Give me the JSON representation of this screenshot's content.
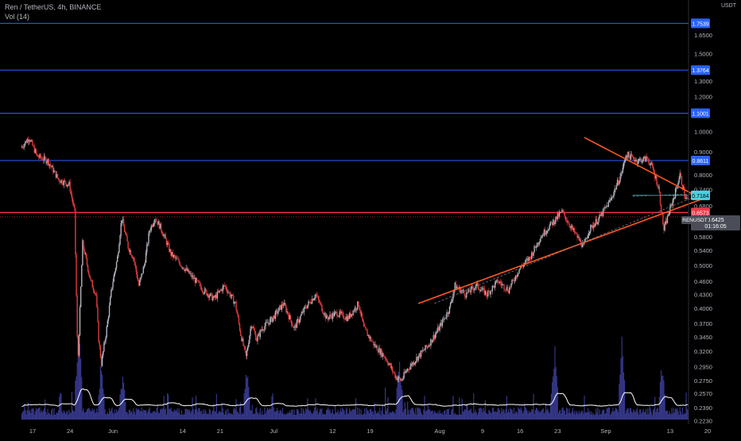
{
  "header": {
    "symbol_line": "Ren / TetherUS, 4h, BINANCE",
    "volume_line": "Vol (14)"
  },
  "colors": {
    "background": "#000000",
    "up": "#b2b5be",
    "down": "#e03b3b",
    "hline": "#2962ff",
    "trendline": "#ff5722",
    "dashed": "#787b86",
    "volume": "#3d3f9e",
    "volume_ma": "#ffffff",
    "price_line": "#f23645",
    "axis_text": "#b2b5be"
  },
  "chart_data": {
    "type": "candlestick",
    "symbol": "RENUSDT",
    "interval": "4h",
    "exchange": "BINANCE",
    "y_axis": {
      "unit": "USDT",
      "scale": "log",
      "range": [
        0.219,
        1.98
      ],
      "ticks": [
        "1.6500",
        "1.5000",
        "1.3000",
        "1.2000",
        "1.0000",
        "0.9000",
        "0.8000",
        "0.7400",
        "0.6800",
        "0.5800",
        "0.5400",
        "0.5000",
        "0.4600",
        "0.4300",
        "0.4000",
        "0.3700",
        "0.3450",
        "0.3200",
        "0.2950",
        "0.2750",
        "0.2570",
        "0.2390",
        "0.2230"
      ]
    },
    "x_axis": {
      "range_days": [
        0,
        165
      ],
      "ticks": [
        {
          "label": "17",
          "day": 0
        },
        {
          "label": "24",
          "day": 7
        },
        {
          "label": "Jun",
          "day": 15
        },
        {
          "label": "14",
          "day": 28
        },
        {
          "label": "21",
          "day": 35
        },
        {
          "label": "Jul",
          "day": 45
        },
        {
          "label": "12",
          "day": 56
        },
        {
          "label": "19",
          "day": 63
        },
        {
          "label": "Aug",
          "day": 76
        },
        {
          "label": "9",
          "day": 84
        },
        {
          "label": "16",
          "day": 91
        },
        {
          "label": "23",
          "day": 98
        },
        {
          "label": "Sep",
          "day": 107
        },
        {
          "label": "13",
          "day": 119
        },
        {
          "label": "20",
          "day": 126
        }
      ]
    },
    "horizontal_levels": [
      {
        "value": 1.7539,
        "label": "1.7539"
      },
      {
        "value": 1.3764,
        "label": "1.3764"
      },
      {
        "value": 1.1001,
        "label": "1.1001"
      },
      {
        "value": 0.8611,
        "label": "0.8611"
      },
      {
        "value": 0.6573,
        "label": "0.6573"
      }
    ],
    "cyan_level": {
      "value": 0.7184,
      "label": "0.7184",
      "from_day": 112
    },
    "current_price": {
      "value": 0.6425,
      "label": "0.6425",
      "symbol": "RENUSDT",
      "countdown": "01:16:05"
    },
    "trendlines": [
      {
        "from": {
          "day": 72,
          "price": 0.41
        },
        "to": {
          "day": 125,
          "price": 0.705
        }
      },
      {
        "from": {
          "day": 103,
          "price": 0.97
        },
        "to": {
          "day": 125,
          "price": 0.705
        }
      }
    ],
    "dashed_trendlines": [
      {
        "from": {
          "day": 75,
          "price": 0.41
        },
        "to": {
          "day": 125,
          "price": 0.725
        }
      },
      {
        "from": {
          "day": 112,
          "price": 0.715
        },
        "to": {
          "day": 125,
          "price": 0.725
        }
      }
    ],
    "price_path": [
      {
        "day": -2,
        "price": 0.92
      },
      {
        "day": -0.5,
        "price": 0.97
      },
      {
        "day": 1,
        "price": 0.88
      },
      {
        "day": 3,
        "price": 0.86
      },
      {
        "day": 5,
        "price": 0.78
      },
      {
        "day": 7,
        "price": 0.76
      },
      {
        "day": 8,
        "price": 0.66
      },
      {
        "day": 8.6,
        "price": 0.3
      },
      {
        "day": 9.5,
        "price": 0.56
      },
      {
        "day": 11,
        "price": 0.46
      },
      {
        "day": 12,
        "price": 0.43
      },
      {
        "day": 12.5,
        "price": 0.34
      },
      {
        "day": 13,
        "price": 0.3
      },
      {
        "day": 14,
        "price": 0.36
      },
      {
        "day": 15,
        "price": 0.45
      },
      {
        "day": 16,
        "price": 0.52
      },
      {
        "day": 16.8,
        "price": 0.64
      },
      {
        "day": 18,
        "price": 0.55
      },
      {
        "day": 19,
        "price": 0.52
      },
      {
        "day": 20,
        "price": 0.45
      },
      {
        "day": 21,
        "price": 0.5
      },
      {
        "day": 22,
        "price": 0.6
      },
      {
        "day": 23,
        "price": 0.64
      },
      {
        "day": 24,
        "price": 0.61
      },
      {
        "day": 25,
        "price": 0.57
      },
      {
        "day": 26,
        "price": 0.53
      },
      {
        "day": 28,
        "price": 0.5
      },
      {
        "day": 30,
        "price": 0.47
      },
      {
        "day": 32,
        "price": 0.44
      },
      {
        "day": 34,
        "price": 0.42
      },
      {
        "day": 36,
        "price": 0.45
      },
      {
        "day": 38,
        "price": 0.41
      },
      {
        "day": 39,
        "price": 0.35
      },
      {
        "day": 40,
        "price": 0.31
      },
      {
        "day": 41,
        "price": 0.37
      },
      {
        "day": 42,
        "price": 0.34
      },
      {
        "day": 43,
        "price": 0.36
      },
      {
        "day": 45,
        "price": 0.38
      },
      {
        "day": 47,
        "price": 0.41
      },
      {
        "day": 49,
        "price": 0.36
      },
      {
        "day": 51,
        "price": 0.4
      },
      {
        "day": 53,
        "price": 0.43
      },
      {
        "day": 55,
        "price": 0.38
      },
      {
        "day": 57,
        "price": 0.39
      },
      {
        "day": 59,
        "price": 0.38
      },
      {
        "day": 61,
        "price": 0.41
      },
      {
        "day": 62,
        "price": 0.36
      },
      {
        "day": 64,
        "price": 0.33
      },
      {
        "day": 66,
        "price": 0.31
      },
      {
        "day": 68,
        "price": 0.28
      },
      {
        "day": 69,
        "price": 0.275
      },
      {
        "day": 70,
        "price": 0.29
      },
      {
        "day": 72,
        "price": 0.31
      },
      {
        "day": 74,
        "price": 0.33
      },
      {
        "day": 76,
        "price": 0.36
      },
      {
        "day": 78,
        "price": 0.4
      },
      {
        "day": 79,
        "price": 0.45
      },
      {
        "day": 81,
        "price": 0.43
      },
      {
        "day": 83,
        "price": 0.45
      },
      {
        "day": 85,
        "price": 0.43
      },
      {
        "day": 87,
        "price": 0.46
      },
      {
        "day": 89,
        "price": 0.44
      },
      {
        "day": 91,
        "price": 0.49
      },
      {
        "day": 93,
        "price": 0.52
      },
      {
        "day": 95,
        "price": 0.58
      },
      {
        "day": 97,
        "price": 0.62
      },
      {
        "day": 99,
        "price": 0.66
      },
      {
        "day": 101,
        "price": 0.6
      },
      {
        "day": 103,
        "price": 0.55
      },
      {
        "day": 104,
        "price": 0.6
      },
      {
        "day": 106,
        "price": 0.64
      },
      {
        "day": 108,
        "price": 0.7
      },
      {
        "day": 110,
        "price": 0.8
      },
      {
        "day": 111,
        "price": 0.89
      },
      {
        "day": 113,
        "price": 0.86
      },
      {
        "day": 115,
        "price": 0.87
      },
      {
        "day": 116,
        "price": 0.82
      },
      {
        "day": 117,
        "price": 0.75
      },
      {
        "day": 118,
        "price": 0.6
      },
      {
        "day": 119,
        "price": 0.66
      },
      {
        "day": 120,
        "price": 0.72
      },
      {
        "day": 121,
        "price": 0.8
      },
      {
        "day": 122,
        "price": 0.71
      },
      {
        "day": 123,
        "price": 0.69
      },
      {
        "day": 124,
        "price": 0.67
      },
      {
        "day": 124.5,
        "price": 0.6425
      }
    ],
    "volume_spikes": [
      {
        "day": 8.6,
        "rel": 0.95
      },
      {
        "day": 12.8,
        "rel": 0.55
      },
      {
        "day": 16.8,
        "rel": 0.45
      },
      {
        "day": 40,
        "rel": 0.5
      },
      {
        "day": 68.5,
        "rel": 0.6
      },
      {
        "day": 97.5,
        "rel": 0.75
      },
      {
        "day": 110,
        "rel": 0.85
      },
      {
        "day": 117.5,
        "rel": 0.55
      }
    ]
  }
}
